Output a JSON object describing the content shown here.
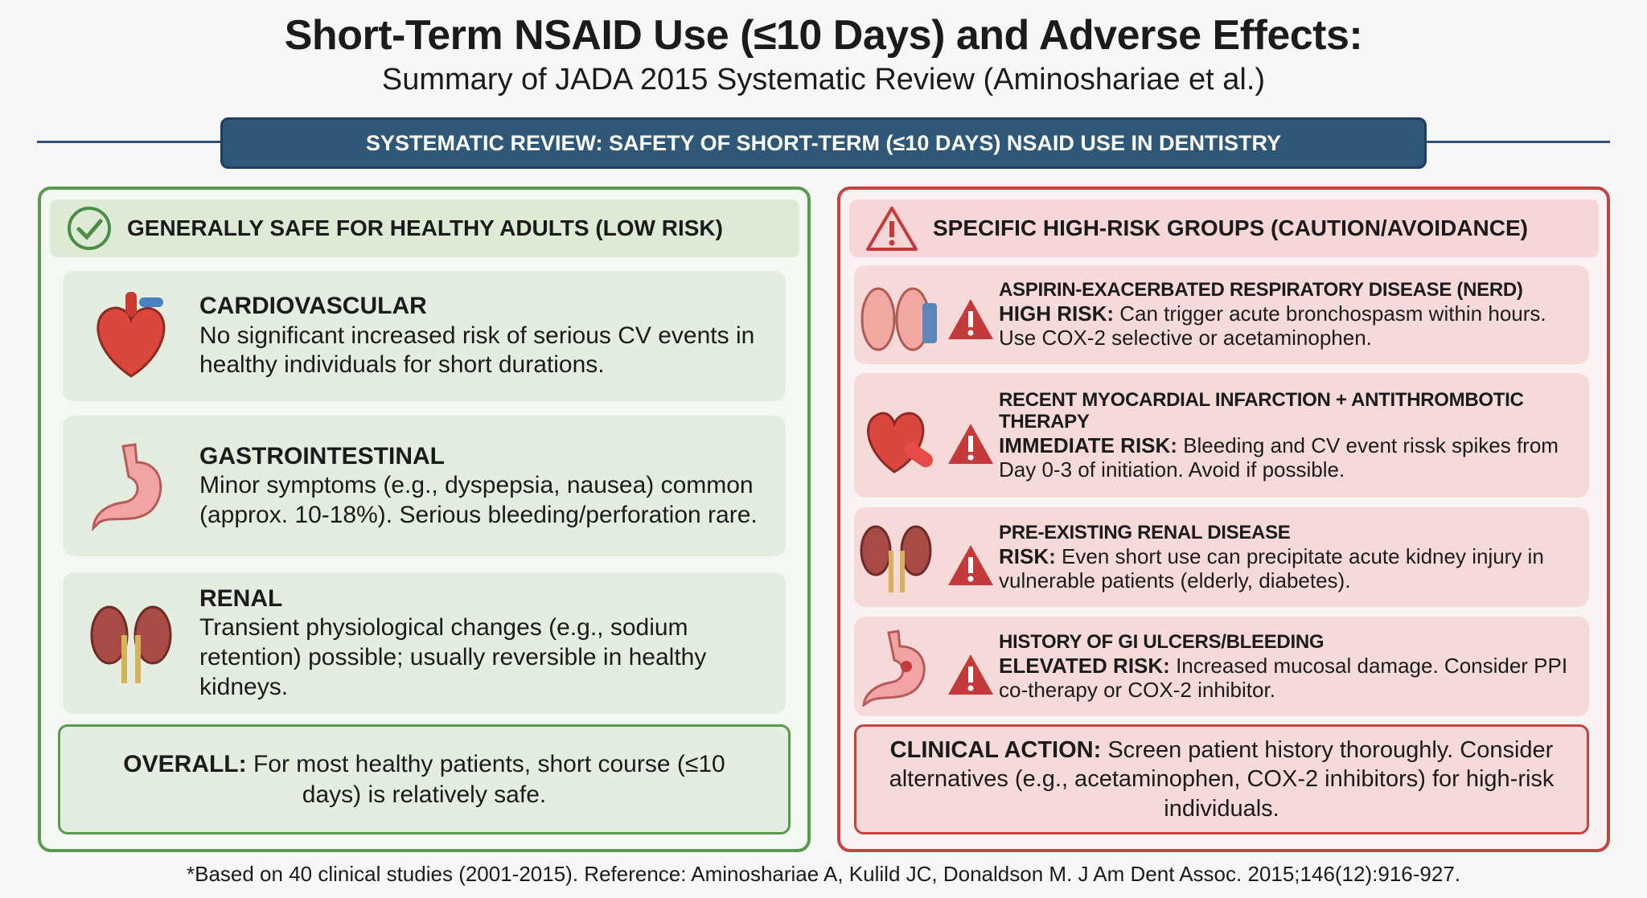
{
  "header": {
    "title": "Short-Term NSAID Use (≤10 Days) and Adverse Effects:",
    "subtitle": "Summary of JADA 2015 Systematic Review (Aminoshariae et al.)"
  },
  "banner": "SYSTEMATIC REVIEW: SAFETY OF SHORT-TERM (≤10 DAYS) NSAID USE IN DENTISTRY",
  "left": {
    "heading": "GENERALLY SAFE FOR HEALTHY ADULTS (LOW RISK)",
    "items": [
      {
        "title": "CARDIOVASCULAR",
        "text": "No significant increased risk of serious CV events in healthy individuals for short durations."
      },
      {
        "title": "GASTROINTESTINAL",
        "text": "Minor symptoms (e.g., dyspepsia, nausea) common (approx. 10-18%). Serious bleeding/perforation rare."
      },
      {
        "title": "RENAL",
        "text": "Transient physiological changes (e.g., sodium retention) possible; usually reversible in healthy kidneys."
      }
    ],
    "overall": {
      "label": "OVERALL:",
      "text": "For most healthy patients, short course (≤10 days) is relatively safe."
    }
  },
  "right": {
    "heading": "SPECIFIC HIGH-RISK GROUPS (CAUTION/AVOIDANCE)",
    "items": [
      {
        "title": "ASPIRIN-EXACERBATED RESPIRATORY DISEASE (NERD)",
        "label": "HIGH RISK:",
        "text": "Can trigger acute bronchospasm within hours. Use COX-2 selective or acetaminophen."
      },
      {
        "title": "RECENT MYOCARDIAL INFARCTION + ANTITHROMBOTIC THERAPY",
        "label": "IMMEDIATE RISK:",
        "text": "Bleeding and CV event rissk spikes from Day 0-3 of initiation. Avoid if possible."
      },
      {
        "title": "PRE-EXISTING RENAL DISEASE",
        "label": "RISK:",
        "text": "Even short use can precipitate acute kidney injury in vulnerable patients (elderly, diabetes)."
      },
      {
        "title": "HISTORY OF GI ULCERS/BLEEDING",
        "label": "ELEVATED RISK:",
        "text": "Increased mucosal damage. Consider PPI co-therapy or COX-2 inhibitor."
      }
    ],
    "action": {
      "label": "CLINICAL ACTION:",
      "text": "Screen patient history thoroughly. Consider alternatives (e.g., acetaminophen, COX-2 inhibitors) for high-risk individuals."
    }
  },
  "footer": "*Based on 40 clinical studies (2001-2015). Reference: Aminoshariae A, Kulild JC, Donaldson M. J Am Dent Assoc. 2015;146(12):916-927."
}
